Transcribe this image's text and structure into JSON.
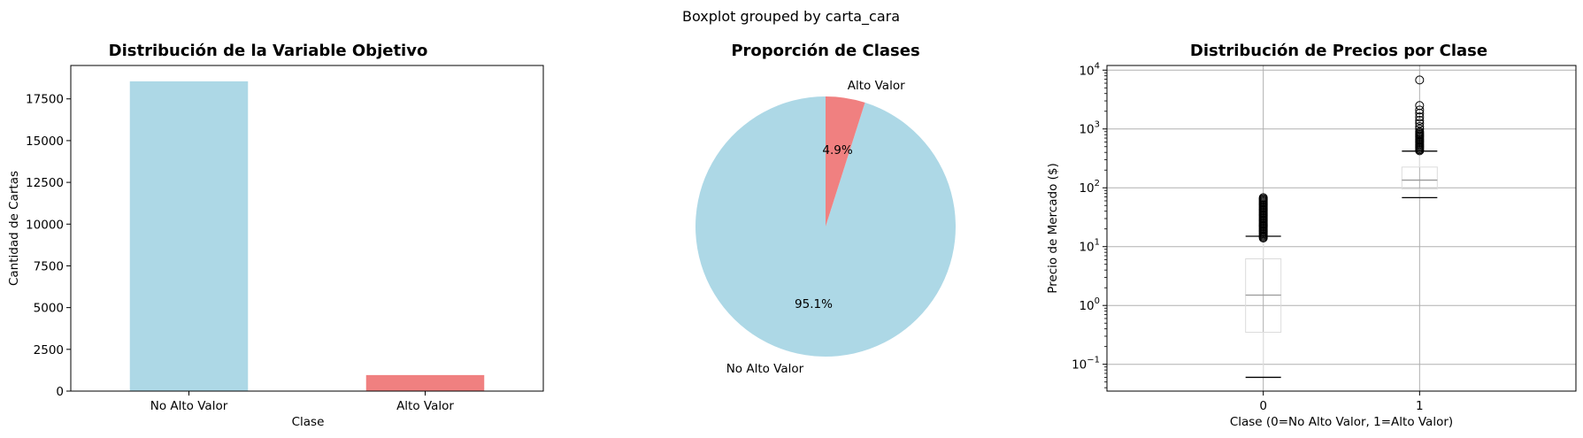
{
  "suptitle": "Boxplot grouped by carta_cara",
  "chart_data": [
    {
      "type": "bar",
      "title": "Distribución de la Variable Objetivo",
      "xlabel": "Clase",
      "ylabel": "Cantidad de Cartas",
      "categories": [
        "No Alto Valor",
        "Alto Valor"
      ],
      "values": [
        18550,
        960
      ],
      "colors": [
        "#add8e6",
        "#f08080"
      ],
      "ylim": [
        0,
        19500
      ],
      "yticks": [
        0,
        2500,
        5000,
        7500,
        10000,
        12500,
        15000,
        17500
      ],
      "ytick_labels": [
        "0",
        "2500",
        "5000",
        "7500",
        "10000",
        "12500",
        "15000",
        "17500"
      ],
      "grid": false
    },
    {
      "type": "pie",
      "title": "Proporción de Clases",
      "labels": [
        "No Alto Valor",
        "Alto Valor"
      ],
      "values": [
        95.1,
        4.9
      ],
      "pct_labels": [
        "95.1%",
        "4.9%"
      ],
      "colors": [
        "#add8e6",
        "#f08080"
      ],
      "start_angle_deg": 90,
      "counterclock": true
    },
    {
      "type": "boxplot",
      "title": "Distribución de Precios por Clase",
      "xlabel": "Clase (0=No Alto Valor, 1=Alto Valor)",
      "ylabel": "Precio de Mercado ($)",
      "yscale": "log",
      "ylim": [
        0.035,
        12000
      ],
      "grid": true,
      "categories": [
        "0",
        "1"
      ],
      "yticks": [
        0.1,
        1,
        10,
        100,
        1000,
        10000
      ],
      "ytick_labels": [
        {
          "base": "10",
          "exp": "−1"
        },
        {
          "base": "10",
          "exp": "0"
        },
        {
          "base": "10",
          "exp": "1"
        },
        {
          "base": "10",
          "exp": "2"
        },
        {
          "base": "10",
          "exp": "3"
        },
        {
          "base": "10",
          "exp": "4"
        }
      ],
      "boxes": [
        {
          "category": "0",
          "whisker_low": 0.06,
          "q1": 0.35,
          "median": 1.5,
          "q3": 6.2,
          "whisker_high": 15,
          "outliers_min": 13.5,
          "outliers_max": 68,
          "outliers_dense": true,
          "outliers": []
        },
        {
          "category": "1",
          "whisker_low": 68,
          "q1": 95,
          "median": 135,
          "q3": 225,
          "whisker_high": 420,
          "outliers_min": 420,
          "outliers_max": 900,
          "outliers_dense": true,
          "outliers": [
            1000,
            1100,
            1250,
            1400,
            1600,
            1850,
            2100,
            2500,
            6800
          ]
        }
      ]
    }
  ]
}
